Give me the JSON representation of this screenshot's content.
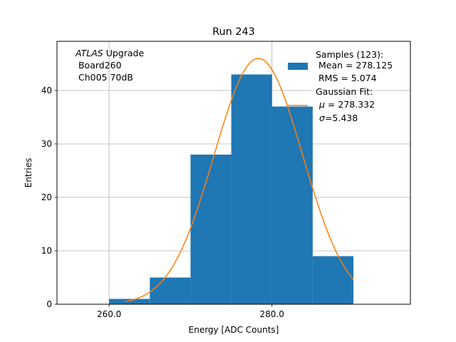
{
  "chart_data": {
    "type": "bar",
    "title": "Run 243",
    "xlabel": "Energy [ADC Counts]",
    "ylabel": "Entries",
    "xlim": [
      253.6,
      297.0
    ],
    "ylim": [
      0,
      49.2
    ],
    "grid": true,
    "xticks": [
      260.0,
      280.0
    ],
    "xtick_labels": [
      "260.0",
      "280.0"
    ],
    "yticks": [
      0,
      10,
      20,
      30,
      40
    ],
    "ytick_labels": [
      "0",
      "10",
      "20",
      "30",
      "40"
    ],
    "bins": [
      {
        "left": 260,
        "right": 265,
        "count": 1
      },
      {
        "left": 265,
        "right": 270,
        "count": 5
      },
      {
        "left": 270,
        "right": 275,
        "count": 28
      },
      {
        "left": 275,
        "right": 280,
        "count": 43
      },
      {
        "left": 280,
        "right": 285,
        "count": 37
      },
      {
        "left": 285,
        "right": 290,
        "count": 9
      }
    ],
    "fit": {
      "amplitude": 46.0,
      "mu": 278.332,
      "sigma": 5.438,
      "x_start": 262,
      "x_end": 290
    },
    "annotation": {
      "italic": "ATLAS",
      "text": " Upgrade",
      "line2": " Board260",
      "line3": " Ch005 70dB"
    },
    "legend": {
      "placement": "top-right",
      "samples_title": "Samples (123):",
      "samples_mean": " Mean = 278.125",
      "samples_rms": " RMS = 5.074",
      "fit_title": "Gaussian Fit:",
      "fit_mu_symbol": "μ",
      "fit_mu_value": " = 278.332",
      "fit_sigma_symbol": "σ",
      "fit_sigma_value": "=5.438"
    },
    "colors": {
      "bars": "#1f77b4",
      "fit": "#ff7f0e",
      "grid": "#b0b0b0"
    }
  }
}
